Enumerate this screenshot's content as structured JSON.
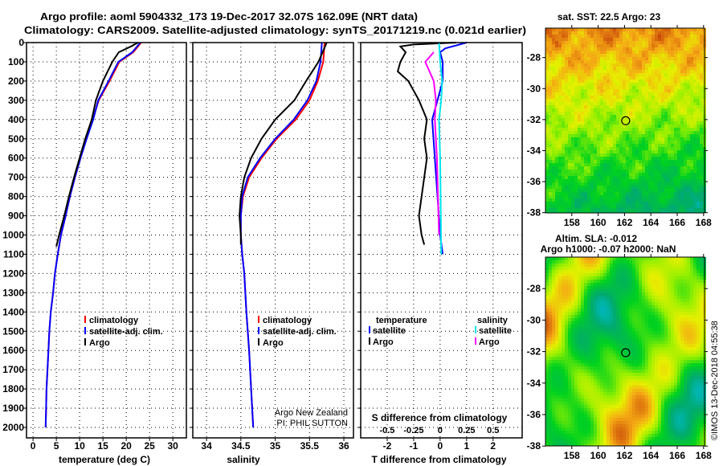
{
  "title": {
    "line1": "Argo profile: aoml 5904332_173 19-Dec-2017 32.07S 162.09E (NRT data)",
    "line2": "Climatology: CARS2009. Satellite-adjusted climatology: synTS_20171219.nc (0.021d earlier)"
  },
  "colors": {
    "climatology": "#ff0000",
    "satellite": "#0000ff",
    "argo": "#000000",
    "sal_satellite": "#00e5ee",
    "sal_argo": "#ff00ff"
  },
  "chart_data": [
    {
      "type": "line",
      "xlabel": "temperature (deg C)",
      "ylabel": "",
      "xlim": [
        -1.4,
        32.9
      ],
      "ylim": [
        2117,
        0
      ],
      "xticks": [
        "0",
        "5",
        "10",
        "15",
        "20",
        "25",
        "30"
      ],
      "yticks": [
        "0",
        "100",
        "200",
        "300",
        "400",
        "500",
        "600",
        "700",
        "800",
        "900",
        "1000",
        "1100",
        "1200",
        "1300",
        "1400",
        "1500",
        "1600",
        "1700",
        "1800",
        "1900",
        "2000"
      ],
      "grid": true,
      "legend": [
        "climatology",
        "satellite-adj. clim.",
        "Argo"
      ],
      "series": [
        {
          "name": "climatology",
          "depth": [
            0,
            50,
            100,
            200,
            300,
            400,
            500,
            600,
            700,
            800,
            900,
            1000,
            1100,
            1200,
            1300,
            1400,
            1500,
            1600,
            1700,
            1800,
            1900,
            2000
          ],
          "values": [
            23.2,
            21.5,
            18.5,
            16.4,
            14.1,
            12.8,
            11.4,
            10.1,
            9.0,
            7.9,
            7.0,
            6.0,
            5.3,
            4.7,
            4.3,
            3.8,
            3.5,
            3.3,
            3.1,
            2.9,
            2.8,
            2.7
          ]
        },
        {
          "name": "satellite-adj. clim.",
          "depth": [
            0,
            50,
            100,
            200,
            300,
            400,
            500,
            600,
            700,
            800,
            900,
            1000,
            1100,
            1200,
            1300,
            1400,
            1500,
            1600,
            1700,
            1800,
            1900,
            2000
          ],
          "values": [
            23.0,
            21.3,
            18.3,
            16.2,
            14.0,
            12.9,
            11.5,
            10.2,
            9.0,
            7.9,
            7.0,
            6.0,
            5.3,
            4.7,
            4.3,
            3.8,
            3.5,
            3.3,
            3.1,
            2.9,
            2.8,
            2.7
          ]
        },
        {
          "name": "Argo",
          "depth": [
            0,
            20,
            50,
            100,
            200,
            300,
            400,
            500,
            600,
            700,
            800,
            900,
            1000,
            1060
          ],
          "values": [
            22.5,
            21.0,
            18.4,
            17.0,
            15.0,
            13.5,
            12.6,
            11.2,
            10.0,
            8.8,
            7.7,
            6.7,
            5.6,
            5.0
          ]
        }
      ]
    },
    {
      "type": "line",
      "xlabel": "salinity",
      "xlim": [
        33.8,
        36.14
      ],
      "ylim": [
        2117,
        0
      ],
      "xticks": [
        "34",
        "34.5",
        "35",
        "35.5",
        "36"
      ],
      "grid": true,
      "legend": [
        "climatology",
        "satellite-adj. clim.",
        "Argo"
      ],
      "annotation": [
        "Argo New Zealand",
        "PI: PHIL SUTTON"
      ],
      "series": [
        {
          "name": "climatology",
          "depth": [
            0,
            100,
            200,
            300,
            400,
            500,
            600,
            700,
            800,
            900,
            1000,
            1100,
            1200,
            1400,
            1600,
            1800,
            2000
          ],
          "values": [
            35.72,
            35.7,
            35.62,
            35.5,
            35.3,
            35.02,
            34.8,
            34.62,
            34.53,
            34.5,
            34.5,
            34.52,
            34.55,
            34.58,
            34.62,
            34.65,
            34.68
          ]
        },
        {
          "name": "satellite-adj. clim.",
          "depth": [
            0,
            100,
            200,
            300,
            400,
            500,
            600,
            700,
            800,
            900,
            1000,
            1100,
            1200,
            1400,
            1600,
            1800,
            2000
          ],
          "values": [
            35.68,
            35.66,
            35.6,
            35.47,
            35.27,
            35.0,
            34.78,
            34.6,
            34.52,
            34.5,
            34.5,
            34.52,
            34.55,
            34.58,
            34.62,
            34.65,
            34.68
          ]
        },
        {
          "name": "Argo",
          "depth": [
            0,
            100,
            200,
            300,
            400,
            500,
            600,
            700,
            800,
            900,
            1000,
            1050
          ],
          "values": [
            35.75,
            35.63,
            35.45,
            35.28,
            35.0,
            34.8,
            34.65,
            34.55,
            34.5,
            34.48,
            34.5,
            34.5
          ]
        }
      ]
    },
    {
      "type": "line",
      "xlabel": "T difference from climatology",
      "x2label": "S difference from climatology",
      "xlim": [
        -3,
        3.1
      ],
      "ylim": [
        2117,
        0
      ],
      "xticks": [
        "-2",
        "-1",
        "0",
        "1",
        "2"
      ],
      "x2ticks": [
        "-0.5",
        "-0.25",
        "0",
        "0.25",
        "0.5"
      ],
      "grid": true,
      "legend_temperature": {
        "heading": "temperature",
        "items": [
          "satellite",
          "Argo"
        ]
      },
      "legend_salinity": {
        "heading": "salinity",
        "items": [
          "satellite",
          "Argo"
        ]
      },
      "series": [
        {
          "name": "T satellite",
          "depth": [
            0,
            30,
            50,
            100,
            200,
            300,
            400,
            500,
            600,
            800,
            1000,
            1100
          ],
          "values": [
            1.0,
            0.2,
            0,
            0.1,
            0.1,
            -0.1,
            -0.3,
            -0.25,
            -0.2,
            -0.1,
            0,
            0.1
          ]
        },
        {
          "name": "T Argo",
          "depth": [
            0,
            10,
            20,
            50,
            100,
            150,
            200,
            300,
            400,
            500,
            600,
            700,
            800,
            900,
            1000,
            1050
          ],
          "values": [
            0.6,
            -1.0,
            -1.5,
            -1.3,
            -1.5,
            -1.6,
            -1.2,
            -0.8,
            -0.5,
            -0.6,
            -0.5,
            -0.6,
            -0.7,
            -0.8,
            -0.7,
            -0.6
          ]
        },
        {
          "name": "S satellite",
          "depth": [
            0,
            100,
            200,
            300,
            400,
            600,
            800,
            1100
          ],
          "values": [
            -0.01,
            0.0,
            0.02,
            0.01,
            -0.01,
            0,
            0.005,
            0.01
          ]
        },
        {
          "name": "S Argo",
          "depth": [
            50,
            100,
            200,
            300,
            400,
            600,
            800,
            1000
          ],
          "values": [
            -0.06,
            -0.14,
            -0.06,
            -0.04,
            -0.05,
            -0.03,
            -0.02,
            -0.01
          ]
        }
      ]
    }
  ],
  "maps": [
    {
      "title": "sat. SST: 22.5 Argo: 23",
      "lon_ticks": [
        "158",
        "160",
        "162",
        "164",
        "166",
        "168"
      ],
      "lat_ticks": [
        "-28",
        "-30",
        "-32",
        "-34",
        "-36",
        "-38"
      ],
      "marker": {
        "lat": -32.07,
        "lon": 162.09
      }
    },
    {
      "title1": "Altim. SLA: -0.012",
      "title2": "Argo h1000: -0.07 h2000: NaN",
      "lon_ticks": [
        "158",
        "160",
        "162",
        "164",
        "166",
        "168"
      ],
      "lat_ticks": [
        "-28",
        "-30",
        "-32",
        "-34",
        "-36",
        "-38"
      ],
      "marker": {
        "lat": -32.07,
        "lon": 162.09
      }
    }
  ],
  "credit": "©IMOS 13-Dec-2018 04:55:38"
}
